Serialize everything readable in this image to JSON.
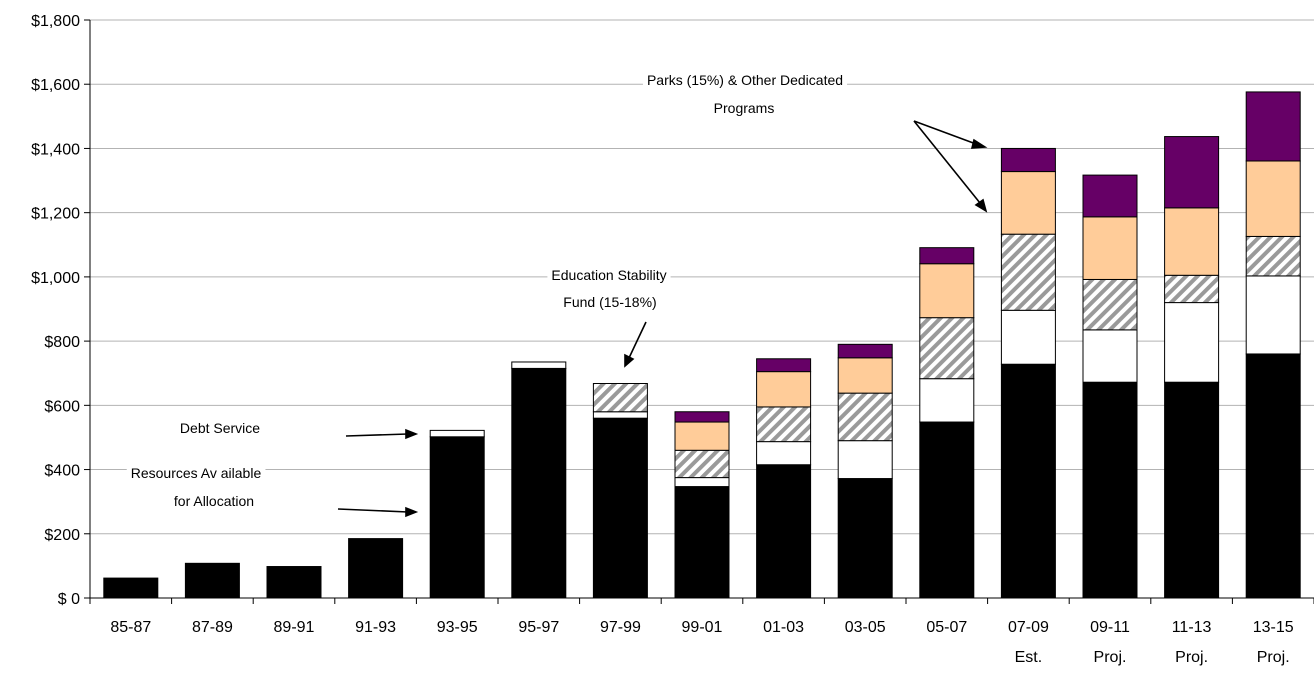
{
  "chart_data": {
    "type": "bar",
    "stacked": true,
    "categories": [
      "85-87",
      "87-89",
      "89-91",
      "91-93",
      "93-95",
      "95-97",
      "97-99",
      "99-01",
      "01-03",
      "03-05",
      "05-07",
      "07-09",
      "09-11",
      "11-13",
      "13-15"
    ],
    "category_sublabels": [
      "",
      "",
      "",
      "",
      "",
      "",
      "",
      "",
      "",
      "",
      "",
      "Est.",
      "Proj.",
      "Proj.",
      "Proj."
    ],
    "series": [
      {
        "values": [
          62,
          108,
          98,
          185,
          502,
          715,
          560,
          347,
          415,
          372,
          548,
          728,
          672,
          672,
          760
        ],
        "color": "#000000",
        "pattern": "solid"
      },
      {
        "values": [
          0,
          0,
          0,
          0,
          20,
          20,
          20,
          28,
          72,
          118,
          135,
          168,
          163,
          248,
          243
        ],
        "color": "#ffffff",
        "pattern": "solid"
      },
      {
        "values": [
          0,
          0,
          0,
          0,
          0,
          0,
          88,
          85,
          108,
          148,
          190,
          237,
          157,
          85,
          123
        ],
        "color": "#aaaaaa",
        "pattern": "hatch"
      },
      {
        "values": [
          0,
          0,
          0,
          0,
          0,
          0,
          0,
          88,
          110,
          110,
          168,
          195,
          195,
          210,
          235
        ],
        "color": "#ffcc99",
        "pattern": "solid"
      },
      {
        "values": [
          0,
          0,
          0,
          0,
          0,
          0,
          0,
          32,
          40,
          42,
          50,
          72,
          130,
          222,
          215
        ],
        "color": "#660066",
        "pattern": "solid"
      }
    ],
    "ylim": [
      0,
      1800
    ],
    "yticks": [
      0,
      200,
      400,
      600,
      800,
      1000,
      1200,
      1400,
      1600,
      1800
    ],
    "ytick_labels": [
      "$ 0",
      "$200",
      "$400",
      "$600",
      "$800",
      "$1,000",
      "$1,200",
      "$1,400",
      "$1,600",
      "$1,800"
    ],
    "grid": true,
    "annotations": {
      "debt_service": "Debt Service",
      "resources_line1": "Resources Av ailable",
      "resources_line2": "for Allocation",
      "education_line1": "Education Stability",
      "education_line2": "Fund (15-18%)",
      "parks_line1": "Parks (15%) & Other Dedicated",
      "parks_line2": "Programs"
    }
  }
}
